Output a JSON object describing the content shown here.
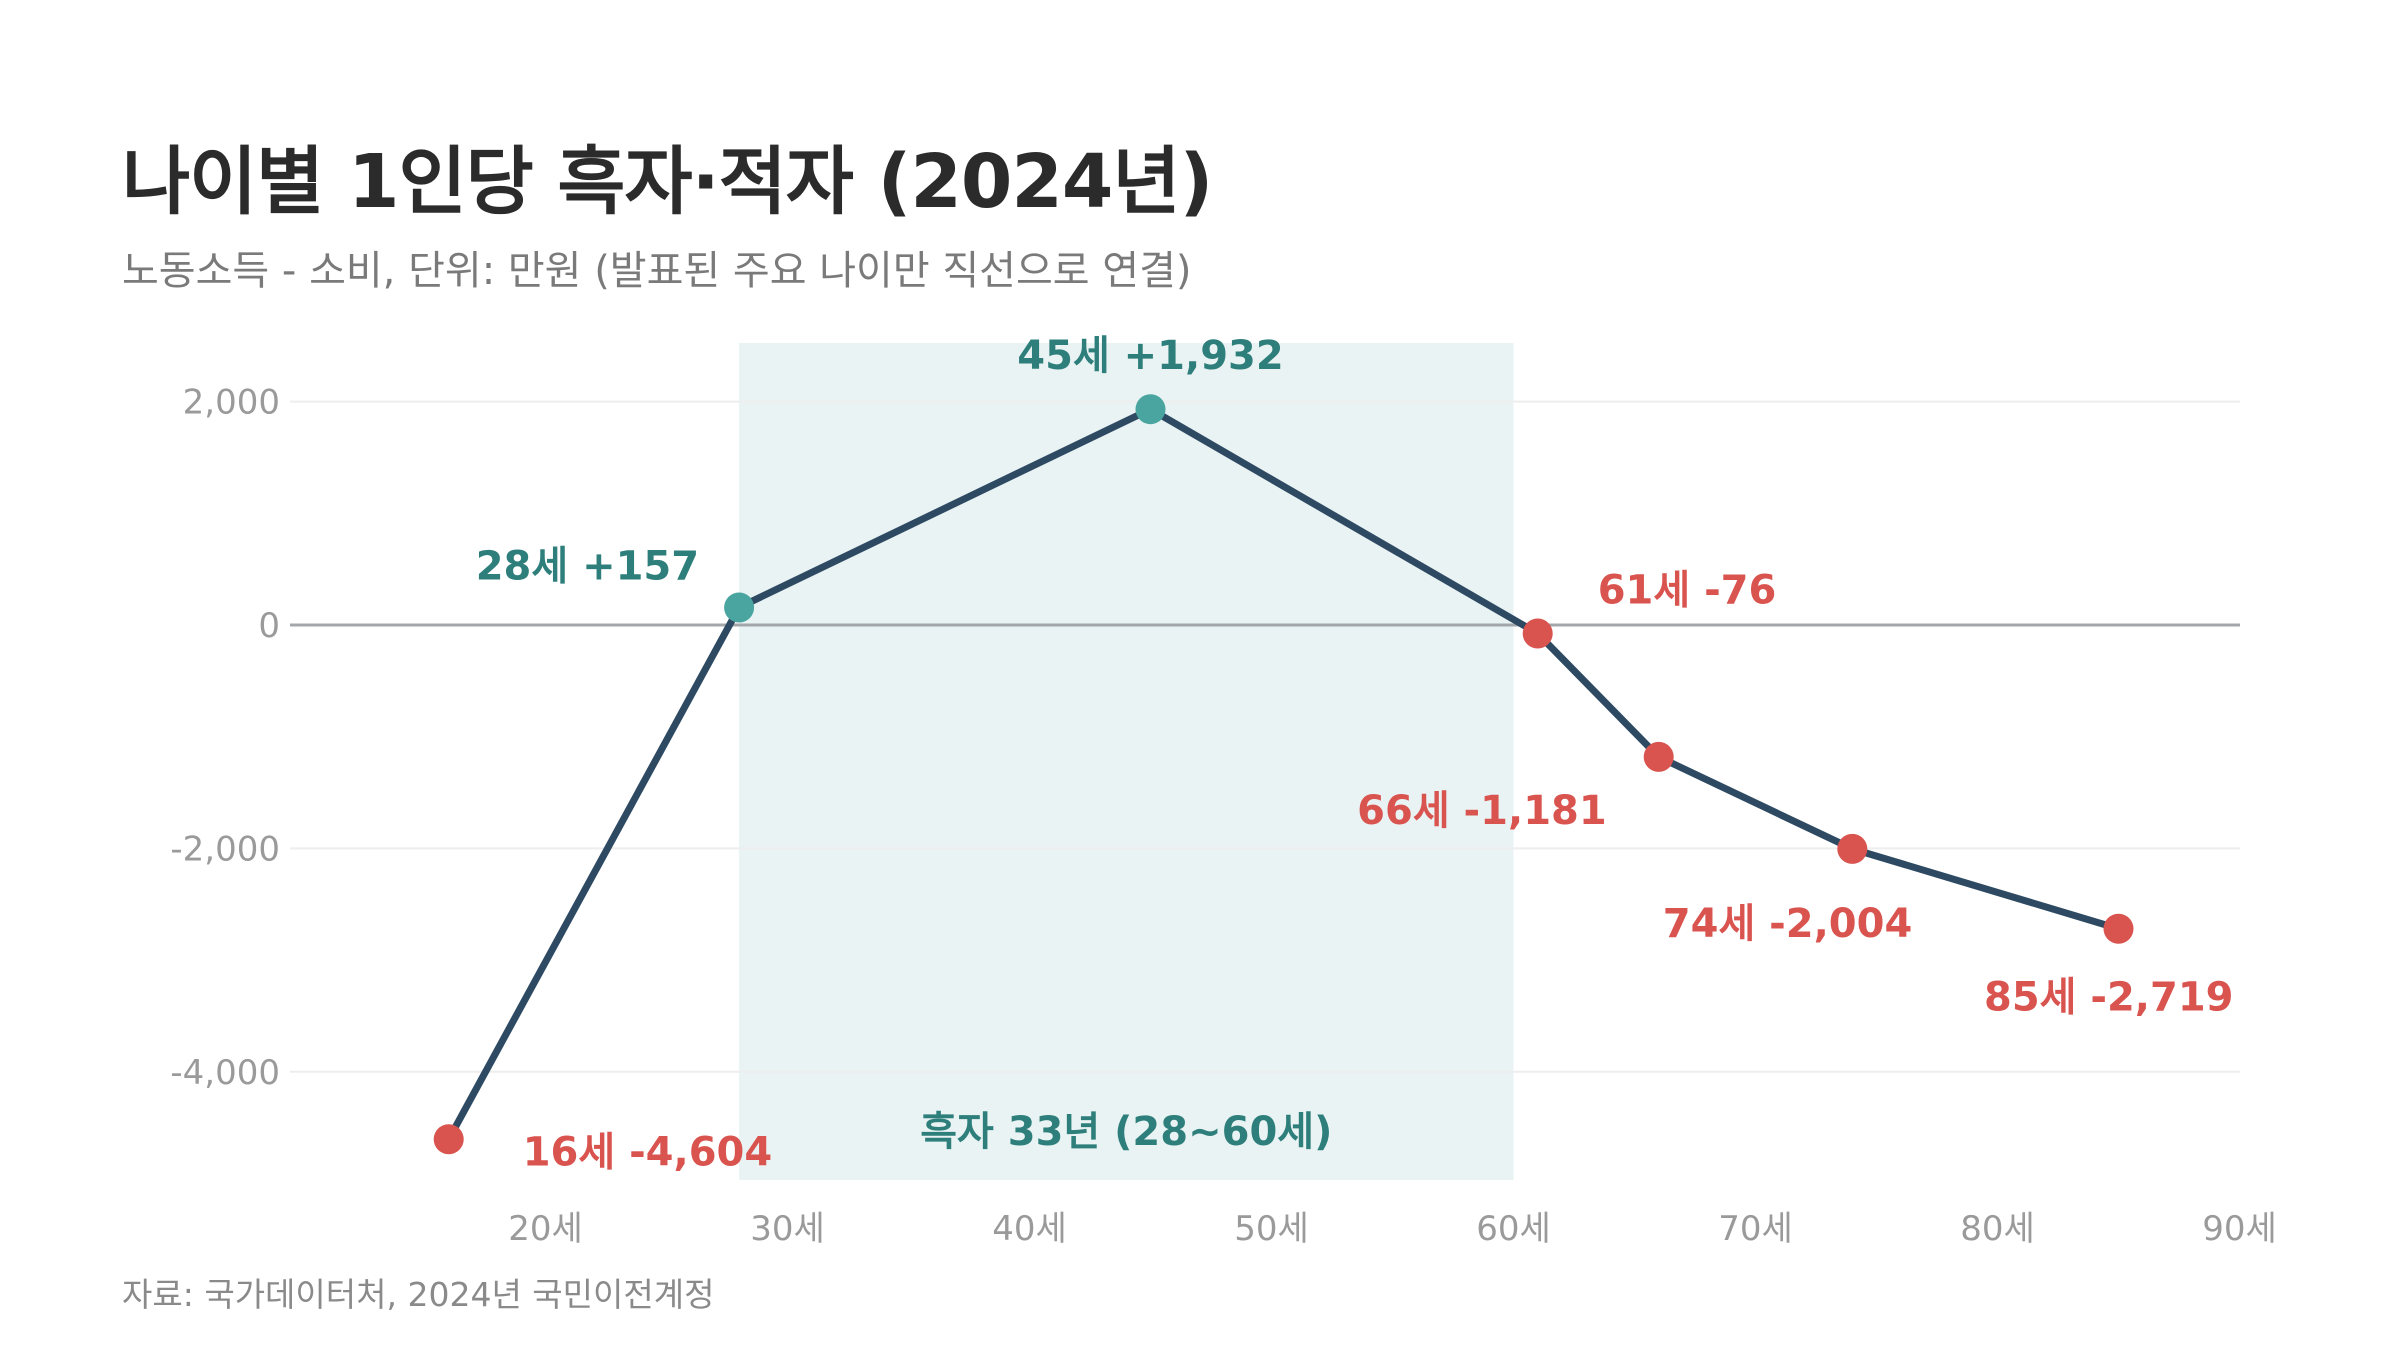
{
  "header": {
    "title": "나이별 1인당 흑자·적자 (2024년)",
    "subtitle": "노동소득 - 소비, 단위: 만원 (발표된 주요 나이만 직선으로 연결)"
  },
  "footer": {
    "source": "자료: 국가데이터처, 2024년 국민이전계정"
  },
  "colors": {
    "line": "#2e4a63",
    "surplus": "#4aa5a0",
    "surplus_text": "#2e7f7b",
    "deficit": "#d9534f",
    "band": "#e9f3f3",
    "grid": "#eeeeee",
    "zero_line": "#a3a7ab"
  },
  "chart_data": {
    "type": "line",
    "x_unit_suffix": "세",
    "xlim": [
      10,
      90
    ],
    "ylim": [
      -5000,
      2500
    ],
    "x_ticks": [
      20,
      30,
      40,
      50,
      60,
      70,
      80,
      90
    ],
    "x_tick_labels": [
      "20세",
      "30세",
      "40세",
      "50세",
      "60세",
      "70세",
      "80세",
      "90세"
    ],
    "y_ticks": [
      2000,
      0,
      -2000,
      -4000
    ],
    "y_tick_labels": [
      "2,000",
      "0",
      "-2,000",
      "-4,000"
    ],
    "grid": true,
    "legend": "none",
    "points": [
      {
        "x": 16,
        "y": -4604,
        "label": "16세 -4,604"
      },
      {
        "x": 28,
        "y": 157,
        "label": "28세 +157"
      },
      {
        "x": 45,
        "y": 1932,
        "label": "45세 +1,932"
      },
      {
        "x": 61,
        "y": -76,
        "label": "61세 -76"
      },
      {
        "x": 66,
        "y": -1181,
        "label": "66세 -1,181"
      },
      {
        "x": 74,
        "y": -2004,
        "label": "74세 -2,004"
      },
      {
        "x": 85,
        "y": -2719,
        "label": "85세 -2,719"
      }
    ],
    "highlight_band": {
      "from": 28,
      "to": 60,
      "label": "흑자 33년 (28~60세)"
    }
  }
}
